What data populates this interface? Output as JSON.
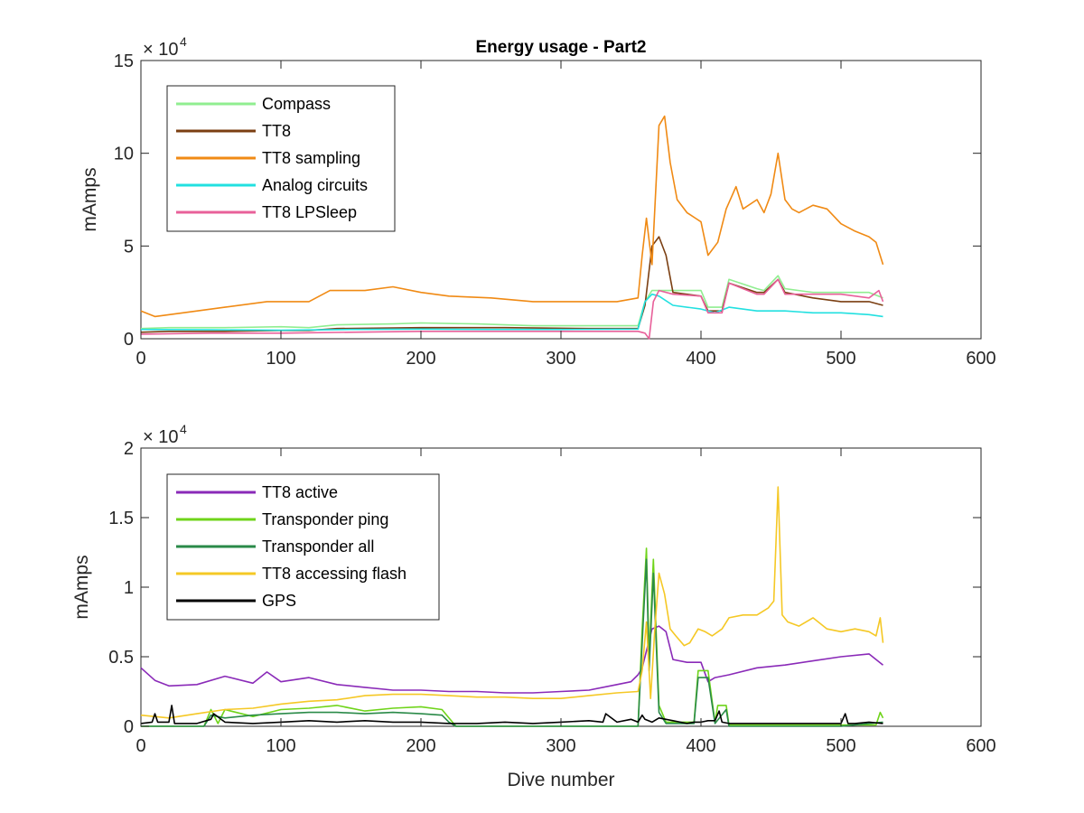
{
  "chart_data": [
    {
      "type": "line",
      "title": "Energy usage - Part2",
      "xlabel": "",
      "ylabel": "mAmps",
      "xlim": [
        0,
        600
      ],
      "ylim": [
        0,
        150000
      ],
      "x_ticks": [
        "0",
        "100",
        "200",
        "300",
        "400",
        "500",
        "600"
      ],
      "y_ticks": [
        "0",
        "5",
        "10",
        "15"
      ],
      "y_exponent": {
        "base": "× 10",
        "power": "4"
      },
      "legend_position": "top-left",
      "series": [
        {
          "name": "Compass",
          "color": "#90ee90",
          "x": [
            0,
            20,
            60,
            100,
            120,
            140,
            180,
            200,
            240,
            280,
            320,
            355,
            360,
            365,
            370,
            380,
            400,
            405,
            415,
            420,
            440,
            445,
            455,
            460,
            480,
            500,
            520,
            530
          ],
          "y": [
            5500,
            6000,
            6000,
            6500,
            6000,
            7500,
            8000,
            8500,
            8000,
            7000,
            7000,
            7000,
            20000,
            26000,
            26000,
            26000,
            26000,
            17000,
            17000,
            32000,
            27000,
            26000,
            34000,
            27000,
            25000,
            25000,
            25000,
            22000
          ]
        },
        {
          "name": "TT8",
          "color": "#7b3f12",
          "x": [
            0,
            20,
            60,
            100,
            120,
            140,
            200,
            260,
            320,
            355,
            360,
            365,
            370,
            375,
            380,
            400,
            405,
            415,
            420,
            440,
            445,
            455,
            460,
            480,
            500,
            520,
            530
          ],
          "y": [
            3500,
            4000,
            4000,
            4500,
            4500,
            5500,
            6000,
            6000,
            5500,
            5500,
            18000,
            50000,
            55000,
            45000,
            25000,
            23000,
            15000,
            15000,
            30000,
            25000,
            25000,
            32000,
            25000,
            22000,
            20000,
            20000,
            18000
          ]
        },
        {
          "name": "TT8 sampling",
          "color": "#f08a14",
          "x": [
            0,
            10,
            30,
            60,
            90,
            120,
            135,
            160,
            180,
            200,
            220,
            250,
            280,
            310,
            340,
            355,
            358,
            361,
            365,
            370,
            374,
            378,
            383,
            390,
            396,
            400,
            405,
            412,
            418,
            425,
            430,
            440,
            445,
            450,
            455,
            460,
            465,
            470,
            480,
            490,
            500,
            505,
            510,
            520,
            525,
            530
          ],
          "y": [
            15000,
            12000,
            14000,
            17000,
            20000,
            20000,
            26000,
            26000,
            28000,
            25000,
            23000,
            22000,
            20000,
            20000,
            20000,
            22000,
            45000,
            65000,
            40000,
            115000,
            120000,
            95000,
            75000,
            68000,
            65000,
            63000,
            45000,
            52000,
            70000,
            82000,
            70000,
            75000,
            68000,
            78000,
            100000,
            75000,
            70000,
            68000,
            72000,
            70000,
            62000,
            60000,
            58000,
            55000,
            52000,
            40000
          ]
        },
        {
          "name": "Analog circuits",
          "color": "#22e0e0",
          "x": [
            0,
            50,
            100,
            150,
            200,
            250,
            300,
            355,
            360,
            365,
            370,
            380,
            400,
            410,
            420,
            440,
            460,
            480,
            500,
            520,
            530
          ],
          "y": [
            5000,
            4800,
            4600,
            5000,
            5200,
            5000,
            5000,
            5200,
            20000,
            24000,
            23000,
            18000,
            16000,
            14000,
            17000,
            15000,
            15000,
            14000,
            14000,
            13000,
            12000
          ]
        },
        {
          "name": "TT8 LPSleep",
          "color": "#e8609a",
          "x": [
            0,
            50,
            100,
            150,
            200,
            250,
            300,
            355,
            360,
            363,
            366,
            370,
            380,
            400,
            405,
            415,
            420,
            440,
            445,
            455,
            460,
            480,
            500,
            520,
            527,
            530
          ],
          "y": [
            2500,
            3000,
            3000,
            3500,
            4000,
            4000,
            4000,
            4000,
            3000,
            0,
            20000,
            26000,
            24000,
            23000,
            14000,
            14000,
            30000,
            24000,
            24000,
            32000,
            24000,
            24000,
            24000,
            22000,
            26000,
            20000
          ]
        }
      ]
    },
    {
      "type": "line",
      "title": "",
      "xlabel": "Dive number",
      "ylabel": "mAmps",
      "xlim": [
        0,
        600
      ],
      "ylim": [
        0,
        20000
      ],
      "x_ticks": [
        "0",
        "100",
        "200",
        "300",
        "400",
        "500",
        "600"
      ],
      "y_ticks": [
        "0",
        "0.5",
        "1",
        "1.5",
        "2"
      ],
      "y_exponent": {
        "base": "× 10",
        "power": "4"
      },
      "legend_position": "top-left",
      "series": [
        {
          "name": "TT8 active",
          "color": "#8a2ab8",
          "x": [
            0,
            10,
            20,
            40,
            60,
            80,
            90,
            100,
            120,
            140,
            160,
            180,
            200,
            220,
            240,
            260,
            280,
            300,
            320,
            340,
            350,
            355,
            358,
            360,
            365,
            370,
            375,
            380,
            390,
            400,
            405,
            410,
            420,
            440,
            460,
            480,
            500,
            520,
            530
          ],
          "y": [
            4200,
            3300,
            2900,
            3000,
            3600,
            3100,
            3900,
            3200,
            3500,
            3000,
            2800,
            2600,
            2600,
            2500,
            2500,
            2400,
            2400,
            2500,
            2600,
            3000,
            3200,
            3700,
            4200,
            5000,
            7000,
            7200,
            6800,
            4800,
            4600,
            4600,
            3200,
            3500,
            3700,
            4200,
            4400,
            4700,
            5000,
            5200,
            4400
          ]
        },
        {
          "name": "Transponder ping",
          "color": "#6fd41a",
          "x": [
            0,
            45,
            50,
            55,
            60,
            80,
            100,
            120,
            140,
            160,
            180,
            200,
            215,
            220,
            225,
            240,
            300,
            355,
            358,
            361,
            363,
            366,
            370,
            375,
            395,
            398,
            405,
            410,
            412,
            418,
            420,
            440,
            500,
            525,
            528,
            530
          ],
          "y": [
            0,
            0,
            1200,
            200,
            1200,
            700,
            1200,
            1300,
            1500,
            1100,
            1300,
            1400,
            1200,
            600,
            0,
            0,
            0,
            0,
            7000,
            12800,
            5000,
            12000,
            1500,
            300,
            300,
            4000,
            4000,
            300,
            1500,
            1500,
            100,
            100,
            100,
            100,
            1000,
            600
          ]
        },
        {
          "name": "Transponder all",
          "color": "#2a8a48",
          "x": [
            0,
            45,
            50,
            60,
            80,
            100,
            120,
            140,
            160,
            180,
            200,
            215,
            220,
            225,
            240,
            300,
            355,
            358,
            361,
            363,
            366,
            370,
            375,
            395,
            398,
            405,
            410,
            418,
            420,
            500,
            530
          ],
          "y": [
            0,
            0,
            800,
            600,
            800,
            900,
            1000,
            1000,
            900,
            1000,
            900,
            800,
            300,
            0,
            0,
            0,
            0,
            6000,
            12000,
            4000,
            11000,
            1000,
            200,
            200,
            3500,
            3500,
            200,
            1200,
            0,
            0,
            300
          ]
        },
        {
          "name": "TT8 accessing flash",
          "color": "#f5c825",
          "x": [
            0,
            20,
            40,
            60,
            80,
            100,
            120,
            140,
            160,
            180,
            200,
            220,
            240,
            260,
            280,
            300,
            320,
            340,
            355,
            358,
            361,
            364,
            367,
            370,
            374,
            378,
            382,
            388,
            392,
            398,
            403,
            408,
            415,
            420,
            430,
            440,
            448,
            452,
            455,
            458,
            462,
            470,
            480,
            490,
            500,
            510,
            520,
            525,
            528,
            530
          ],
          "y": [
            800,
            600,
            900,
            1200,
            1300,
            1600,
            1800,
            1900,
            2200,
            2300,
            2300,
            2200,
            2100,
            2100,
            2000,
            2000,
            2200,
            2400,
            2500,
            4000,
            7500,
            2000,
            7000,
            11000,
            9500,
            7000,
            6500,
            5800,
            6000,
            7000,
            6800,
            6500,
            7000,
            7800,
            8000,
            8000,
            8500,
            9000,
            17200,
            8000,
            7500,
            7200,
            7800,
            7000,
            6800,
            7000,
            6800,
            6500,
            7800,
            6000
          ]
        },
        {
          "name": "GPS",
          "color": "#000000",
          "x": [
            0,
            8,
            10,
            12,
            20,
            22,
            24,
            40,
            50,
            52,
            60,
            80,
            100,
            120,
            140,
            160,
            180,
            200,
            220,
            240,
            260,
            280,
            300,
            320,
            330,
            332,
            340,
            350,
            355,
            358,
            360,
            365,
            370,
            380,
            390,
            395,
            400,
            405,
            410,
            413,
            415,
            420,
            440,
            460,
            480,
            500,
            503,
            505,
            510,
            520,
            530
          ],
          "y": [
            200,
            300,
            900,
            300,
            300,
            1500,
            200,
            200,
            500,
            900,
            300,
            200,
            300,
            400,
            300,
            400,
            300,
            300,
            200,
            200,
            300,
            200,
            300,
            400,
            300,
            900,
            300,
            500,
            300,
            800,
            500,
            300,
            600,
            400,
            200,
            300,
            300,
            400,
            400,
            1100,
            300,
            200,
            200,
            200,
            200,
            200,
            900,
            200,
            200,
            300,
            200
          ]
        }
      ]
    }
  ]
}
